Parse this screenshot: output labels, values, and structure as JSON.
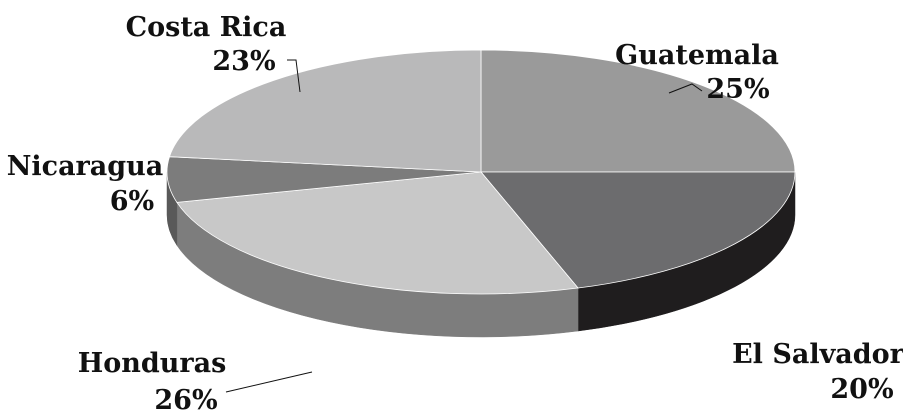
{
  "chart_data": {
    "type": "pie",
    "style": "3d-tilted",
    "title": "",
    "slices": [
      {
        "name": "Guatemala",
        "label": "Guatemala",
        "value": 25,
        "value_label": "25%",
        "color": "#9a9a9a",
        "side_color": "#6e6e6e"
      },
      {
        "name": "El Salvador",
        "label": "El Salvador",
        "value": 20,
        "value_label": "20%",
        "color": "#6c6c6e",
        "side_color": "#1f1d1e"
      },
      {
        "name": "Honduras",
        "label": "Honduras",
        "value": 26,
        "value_label": "26%",
        "color": "#c8c8c8",
        "side_color": "#7d7d7d"
      },
      {
        "name": "Nicaragua",
        "label": "Nicaragua",
        "value": 6,
        "value_label": "6%",
        "color": "#7c7c7c",
        "side_color": "#595959"
      },
      {
        "name": "Costa Rica",
        "label": "Costa Rica",
        "value": 23,
        "value_label": "23%",
        "color": "#b9b9ba",
        "side_color": "#8a8a8a"
      }
    ],
    "start_angle_deg": -90,
    "direction": "clockwise",
    "legend": "none"
  }
}
